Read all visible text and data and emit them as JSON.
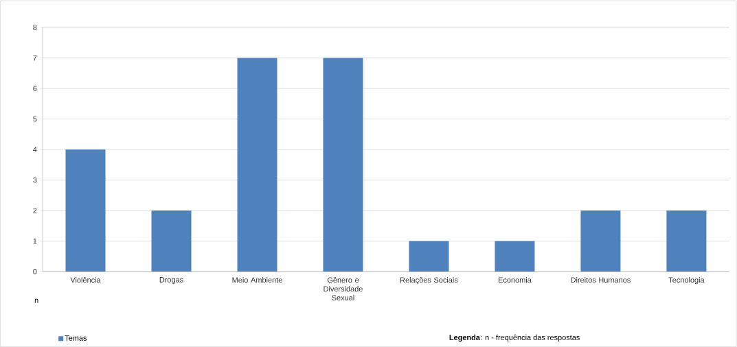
{
  "chart_data": {
    "type": "bar",
    "ylabel": "n",
    "categories": [
      "Violência",
      "Drogas",
      "Meio Ambiente",
      "Gênero e Diversidade Sexual",
      "Relações Sociais",
      "Economia",
      "Direitos Humanos",
      "Tecnologia"
    ],
    "series": [
      {
        "name": "Temas",
        "color": "#4f81bd",
        "values": [
          4,
          2,
          7,
          7,
          1,
          1,
          2,
          2
        ]
      }
    ],
    "ylim": [
      0,
      8
    ],
    "yticks": [
      0,
      1,
      2,
      3,
      4,
      5,
      6,
      7,
      8
    ],
    "grid": "y",
    "legend": "bottom left",
    "annotations": [
      "**Legenda**: n - frequência das respostas"
    ]
  }
}
